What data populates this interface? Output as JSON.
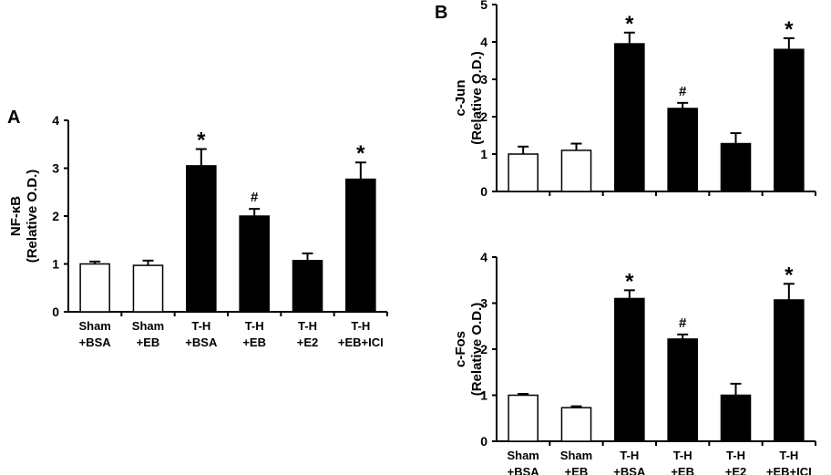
{
  "chart_data": [
    {
      "type": "bar",
      "panel": "A",
      "categories": [
        [
          "Sham",
          "+BSA"
        ],
        [
          "Sham",
          "+EB"
        ],
        [
          "T-H",
          "+BSA"
        ],
        [
          "T-H",
          "+EB"
        ],
        [
          "T-H",
          "+E2"
        ],
        [
          "T-H",
          "+EB+ICI"
        ]
      ],
      "values": [
        1.0,
        0.97,
        3.05,
        2.0,
        1.07,
        2.77
      ],
      "errors": [
        0.05,
        0.1,
        0.35,
        0.15,
        0.15,
        0.35
      ],
      "annotations": [
        "",
        "",
        "*",
        "#",
        "",
        "*"
      ],
      "fill": [
        "#ffffff",
        "#ffffff",
        "#000000",
        "#000000",
        "#000000",
        "#000000"
      ],
      "ylabel": [
        "NF-κB",
        "(Relative O.D.)"
      ],
      "ylim": [
        0,
        4
      ],
      "yticks": [
        0,
        1,
        2,
        3,
        4
      ]
    },
    {
      "type": "bar",
      "panel": "B",
      "categories": [
        [
          "Sham",
          "+BSA"
        ],
        [
          "Sham",
          "+EB"
        ],
        [
          "T-H",
          "+BSA"
        ],
        [
          "T-H",
          "+EB"
        ],
        [
          "T-H",
          "+E2"
        ],
        [
          "T-H",
          "+EB+ICI"
        ]
      ],
      "values": [
        1.0,
        1.1,
        3.95,
        2.22,
        1.28,
        3.8
      ],
      "errors": [
        0.2,
        0.18,
        0.3,
        0.15,
        0.28,
        0.3
      ],
      "annotations": [
        "",
        "",
        "*",
        "#",
        "",
        "*"
      ],
      "fill": [
        "#ffffff",
        "#ffffff",
        "#000000",
        "#000000",
        "#000000",
        "#000000"
      ],
      "ylabel": [
        "c-Jun",
        "(Relative O.D.)"
      ],
      "ylim": [
        0,
        5
      ],
      "yticks": [
        0,
        1,
        2,
        3,
        4,
        5
      ],
      "show_category_labels": false
    },
    {
      "type": "bar",
      "categories": [
        [
          "Sham",
          "+BSA"
        ],
        [
          "Sham",
          "+EB"
        ],
        [
          "T-H",
          "+BSA"
        ],
        [
          "T-H",
          "+EB"
        ],
        [
          "T-H",
          "+E2"
        ],
        [
          "T-H",
          "+EB+ICI"
        ]
      ],
      "values": [
        1.0,
        0.73,
        3.1,
        2.22,
        1.0,
        3.07
      ],
      "errors": [
        0.03,
        0.03,
        0.18,
        0.1,
        0.25,
        0.35
      ],
      "annotations": [
        "",
        "",
        "*",
        "#",
        "",
        "*"
      ],
      "fill": [
        "#ffffff",
        "#ffffff",
        "#000000",
        "#000000",
        "#000000",
        "#000000"
      ],
      "ylabel": [
        "c-Fos",
        "(Relative O.D.)"
      ],
      "ylim": [
        0,
        4
      ],
      "yticks": [
        0,
        1,
        2,
        3,
        4
      ]
    }
  ]
}
